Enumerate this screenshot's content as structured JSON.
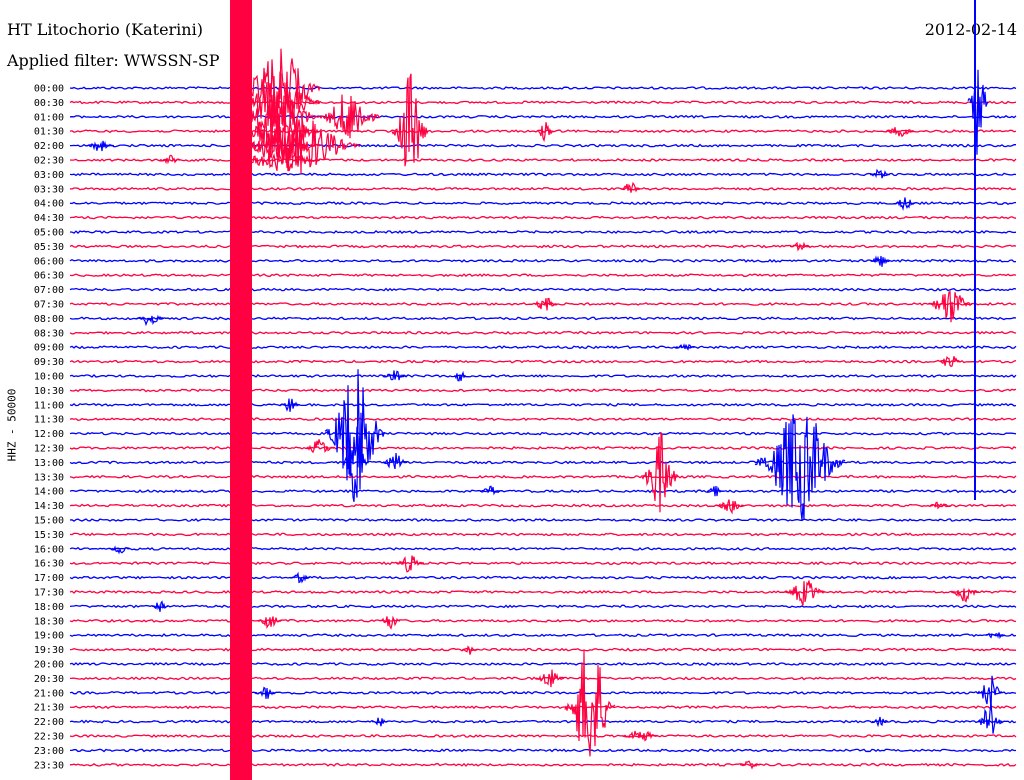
{
  "header": {
    "station": "HT Litochorio (Katerini)",
    "filter": "Applied filter: WWSSN-SP",
    "date": "2012-02-14"
  },
  "channel_label": "HHZ - 50000",
  "chart_data": {
    "type": "helicorder",
    "title": "HT Litochorio (Katerini)",
    "subtitle": "Applied filter: WWSSN-SP",
    "date": "2012-02-14",
    "ylabel": "HHZ - 50000",
    "row_labels": [
      "00:00",
      "00:30",
      "01:00",
      "01:30",
      "02:00",
      "02:30",
      "03:00",
      "03:30",
      "04:00",
      "04:30",
      "05:00",
      "05:30",
      "06:00",
      "06:30",
      "07:00",
      "07:30",
      "08:00",
      "08:30",
      "09:00",
      "09:30",
      "10:00",
      "10:30",
      "11:00",
      "11:30",
      "12:00",
      "12:30",
      "13:00",
      "13:30",
      "14:00",
      "14:30",
      "15:00",
      "15:30",
      "16:00",
      "16:30",
      "17:00",
      "17:30",
      "18:00",
      "18:30",
      "19:00",
      "19:30",
      "20:00",
      "20:30",
      "21:00",
      "21:30",
      "22:00",
      "22:30",
      "23:00",
      "23:30"
    ],
    "trace_colors": [
      "#0000ff",
      "#ff0040"
    ],
    "minutes_per_line": 30
  }
}
